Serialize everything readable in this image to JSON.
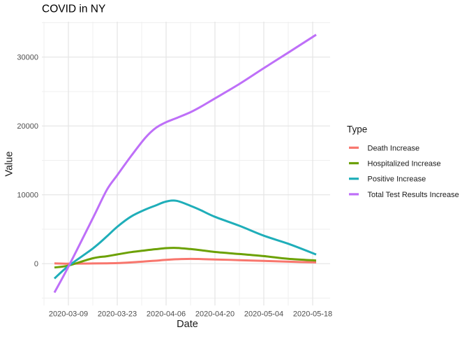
{
  "title": "COVID in NY",
  "axes": {
    "x_label": "Date",
    "y_label": "Value",
    "x_ticks": [
      "2020-03-09",
      "2020-03-23",
      "2020-04-06",
      "2020-04-20",
      "2020-05-04",
      "2020-05-18"
    ],
    "y_ticks": [
      0,
      10000,
      20000,
      30000
    ]
  },
  "legend": {
    "title": "Type",
    "items": [
      "Death Increase",
      "Hospitalized Increase",
      "Positive Increase",
      "Total Test Results Increase"
    ]
  },
  "style": {
    "grid_major_color": "#e4e4e4",
    "grid_minor_color": "#efefef",
    "background": "#ffffff"
  },
  "chart_data": {
    "type": "line",
    "title": "COVID in NY",
    "xlabel": "Date",
    "ylabel": "Value",
    "x": [
      "2020-03-05",
      "2020-03-09",
      "2020-03-16",
      "2020-03-20",
      "2020-03-23",
      "2020-03-27",
      "2020-03-31",
      "2020-04-03",
      "2020-04-06",
      "2020-04-09",
      "2020-04-13",
      "2020-04-16",
      "2020-04-20",
      "2020-04-27",
      "2020-05-04",
      "2020-05-11",
      "2020-05-19"
    ],
    "series": [
      {
        "name": "Death Increase",
        "color": "#F8766D",
        "values": [
          40,
          0,
          30,
          50,
          80,
          180,
          320,
          430,
          550,
          640,
          690,
          665,
          610,
          510,
          400,
          280,
          185
        ]
      },
      {
        "name": "Hospitalized Increase",
        "color": "#6CA104",
        "values": [
          -560,
          -270,
          780,
          1080,
          1340,
          1680,
          1930,
          2100,
          2250,
          2280,
          2120,
          1950,
          1700,
          1400,
          1100,
          700,
          460
        ]
      },
      {
        "name": "Positive Increase",
        "color": "#1FAEB9",
        "values": [
          -2160,
          -350,
          2200,
          3950,
          5350,
          6850,
          7850,
          8450,
          9020,
          9130,
          8400,
          7750,
          6800,
          5500,
          4060,
          2890,
          1330
        ]
      },
      {
        "name": "Total Test Results Increase",
        "color": "#BE6FF8",
        "values": [
          -4200,
          -450,
          6600,
          10700,
          12850,
          15650,
          18250,
          19700,
          20550,
          21150,
          22000,
          22800,
          24000,
          26100,
          28400,
          30650,
          33250
        ]
      }
    ],
    "ylim": [
      -6000,
      35200
    ],
    "y_tick_values": [
      0,
      10000,
      20000,
      30000
    ],
    "x_tick_dates": [
      "2020-03-09",
      "2020-03-23",
      "2020-04-06",
      "2020-04-20",
      "2020-05-04",
      "2020-05-18"
    ],
    "grid": true,
    "legend_position": "right"
  }
}
